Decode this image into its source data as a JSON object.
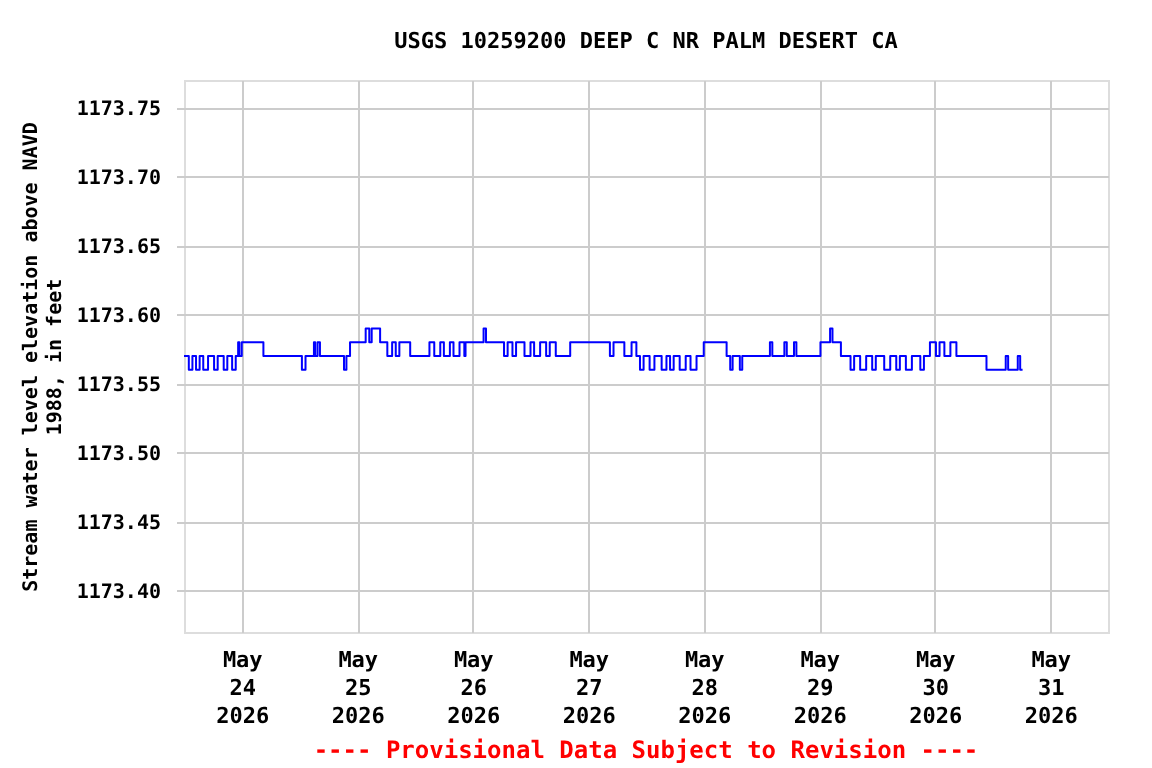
{
  "chart_data": {
    "type": "step",
    "title": "USGS 10259200 DEEP C NR PALM DESERT CA",
    "ylabel": "Stream water level elevation above NAVD 1988, in feet",
    "annotations": [
      "---- Provisional Data Subject to Revision ----"
    ],
    "xlim": [
      "2026-05-23T12:00",
      "2026-05-31T12:00"
    ],
    "xticks": [
      {
        "value": "2026-05-24",
        "label": "May\n24\n2026"
      },
      {
        "value": "2026-05-25",
        "label": "May\n25\n2026"
      },
      {
        "value": "2026-05-26",
        "label": "May\n26\n2026"
      },
      {
        "value": "2026-05-27",
        "label": "May\n27\n2026"
      },
      {
        "value": "2026-05-28",
        "label": "May\n28\n2026"
      },
      {
        "value": "2026-05-29",
        "label": "May\n29\n2026"
      },
      {
        "value": "2026-05-30",
        "label": "May\n30\n2026"
      },
      {
        "value": "2026-05-31",
        "label": "May\n31\n2026"
      }
    ],
    "ylim": [
      1173.37,
      1173.77
    ],
    "yticks": [
      {
        "value": 1173.4,
        "label": "1173.40"
      },
      {
        "value": 1173.45,
        "label": "1173.45"
      },
      {
        "value": 1173.5,
        "label": "1173.50"
      },
      {
        "value": 1173.55,
        "label": "1173.55"
      },
      {
        "value": 1173.6,
        "label": "1173.60"
      },
      {
        "value": 1173.65,
        "label": "1173.65"
      },
      {
        "value": 1173.7,
        "label": "1173.70"
      },
      {
        "value": 1173.75,
        "label": "1173.75"
      }
    ],
    "grid": true,
    "marker": "none",
    "line_style": "solid",
    "x": [
      "2026-05-23T12:00",
      "2026-05-23T13:00",
      "2026-05-23T13:45",
      "2026-05-23T14:30",
      "2026-05-23T15:15",
      "2026-05-23T16:00",
      "2026-05-23T17:00",
      "2026-05-23T18:15",
      "2026-05-23T19:00",
      "2026-05-23T20:15",
      "2026-05-23T21:00",
      "2026-05-23T22:00",
      "2026-05-23T22:45",
      "2026-05-23T23:15",
      "2026-05-23T23:30",
      "2026-05-24T00:00",
      "2026-05-24T04:30",
      "2026-05-24T12:30",
      "2026-05-24T13:15",
      "2026-05-24T15:00",
      "2026-05-24T15:15",
      "2026-05-24T15:45",
      "2026-05-24T16:15",
      "2026-05-24T21:15",
      "2026-05-24T21:45",
      "2026-05-24T22:30",
      "2026-05-25T01:45",
      "2026-05-25T02:30",
      "2026-05-25T03:00",
      "2026-05-25T04:45",
      "2026-05-25T06:15",
      "2026-05-25T07:15",
      "2026-05-25T08:00",
      "2026-05-25T08:45",
      "2026-05-25T11:00",
      "2026-05-25T15:00",
      "2026-05-25T16:00",
      "2026-05-25T17:15",
      "2026-05-25T18:00",
      "2026-05-25T19:15",
      "2026-05-25T20:00",
      "2026-05-25T21:15",
      "2026-05-25T22:15",
      "2026-05-25T22:30",
      "2026-05-26T02:15",
      "2026-05-26T02:45",
      "2026-05-26T06:30",
      "2026-05-26T07:15",
      "2026-05-26T08:15",
      "2026-05-26T09:00",
      "2026-05-26T10:45",
      "2026-05-26T12:00",
      "2026-05-26T12:45",
      "2026-05-26T14:00",
      "2026-05-26T15:15",
      "2026-05-26T16:00",
      "2026-05-26T17:15",
      "2026-05-26T20:15",
      "2026-05-27T04:30",
      "2026-05-27T05:15",
      "2026-05-27T07:30",
      "2026-05-27T09:00",
      "2026-05-27T10:00",
      "2026-05-27T10:45",
      "2026-05-27T11:30",
      "2026-05-27T12:45",
      "2026-05-27T13:45",
      "2026-05-27T15:15",
      "2026-05-27T16:15",
      "2026-05-27T17:00",
      "2026-05-27T17:45",
      "2026-05-27T19:00",
      "2026-05-27T20:15",
      "2026-05-27T21:15",
      "2026-05-27T22:30",
      "2026-05-28T00:00",
      "2026-05-28T04:45",
      "2026-05-28T05:30",
      "2026-05-28T06:00",
      "2026-05-28T07:30",
      "2026-05-28T08:00",
      "2026-05-28T13:45",
      "2026-05-28T14:15",
      "2026-05-28T16:45",
      "2026-05-28T17:15",
      "2026-05-28T18:45",
      "2026-05-28T19:15",
      "2026-05-29T00:15",
      "2026-05-29T02:15",
      "2026-05-29T02:45",
      "2026-05-29T04:30",
      "2026-05-29T06:30",
      "2026-05-29T07:15",
      "2026-05-29T08:30",
      "2026-05-29T09:45",
      "2026-05-29T11:00",
      "2026-05-29T11:45",
      "2026-05-29T13:30",
      "2026-05-29T14:45",
      "2026-05-29T16:00",
      "2026-05-29T16:45",
      "2026-05-29T18:00",
      "2026-05-29T19:15",
      "2026-05-29T21:00",
      "2026-05-29T21:45",
      "2026-05-29T23:00",
      "2026-05-30T00:15",
      "2026-05-30T01:00",
      "2026-05-30T02:00",
      "2026-05-30T03:15",
      "2026-05-30T04:30",
      "2026-05-30T10:45",
      "2026-05-30T14:45",
      "2026-05-30T15:15",
      "2026-05-30T17:15",
      "2026-05-30T17:45",
      "2026-05-30T18:15"
    ],
    "series": [
      {
        "color": "#0000ff",
        "values": [
          1173.57,
          1173.56,
          1173.57,
          1173.56,
          1173.57,
          1173.56,
          1173.57,
          1173.56,
          1173.57,
          1173.56,
          1173.57,
          1173.56,
          1173.57,
          1173.58,
          1173.57,
          1173.58,
          1173.57,
          1173.56,
          1173.57,
          1173.58,
          1173.57,
          1173.58,
          1173.57,
          1173.56,
          1173.57,
          1173.58,
          1173.59,
          1173.58,
          1173.59,
          1173.58,
          1173.57,
          1173.58,
          1173.57,
          1173.58,
          1173.57,
          1173.58,
          1173.57,
          1173.58,
          1173.57,
          1173.58,
          1173.57,
          1173.58,
          1173.57,
          1173.58,
          1173.59,
          1173.58,
          1173.57,
          1173.58,
          1173.57,
          1173.58,
          1173.57,
          1173.58,
          1173.57,
          1173.58,
          1173.57,
          1173.58,
          1173.57,
          1173.58,
          1173.57,
          1173.58,
          1173.57,
          1173.58,
          1173.57,
          1173.56,
          1173.57,
          1173.56,
          1173.57,
          1173.56,
          1173.57,
          1173.56,
          1173.57,
          1173.56,
          1173.57,
          1173.56,
          1173.57,
          1173.58,
          1173.57,
          1173.56,
          1173.57,
          1173.56,
          1173.57,
          1173.58,
          1173.57,
          1173.58,
          1173.57,
          1173.58,
          1173.57,
          1173.58,
          1173.59,
          1173.58,
          1173.57,
          1173.56,
          1173.57,
          1173.56,
          1173.57,
          1173.56,
          1173.57,
          1173.56,
          1173.57,
          1173.56,
          1173.57,
          1173.56,
          1173.57,
          1173.56,
          1173.57,
          1173.58,
          1173.57,
          1173.58,
          1173.57,
          1173.58,
          1173.57,
          1173.56,
          1173.57,
          1173.56,
          1173.57,
          1173.56,
          1173.56
        ]
      }
    ]
  }
}
